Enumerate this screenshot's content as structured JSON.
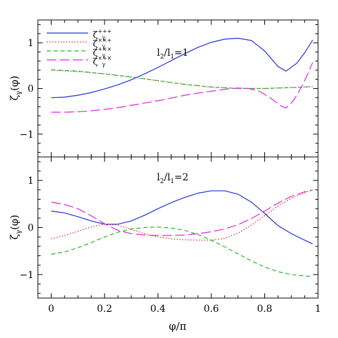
{
  "figure": {
    "xlabel": "φ/π",
    "ylabel": "ζ",
    "ylabel_sub": "γ",
    "ylabel_suffix": "(φ)"
  },
  "chart_data": [
    {
      "type": "line",
      "panel_label": "l2/l1=1",
      "panel_label_parts": {
        "a": "l",
        "a_sub": "2",
        "slash": "/",
        "b": "l",
        "b_sub": "1",
        "eq": "=1"
      },
      "xlim": [
        -0.05,
        1.0
      ],
      "ylim": [
        -1.5,
        1.5
      ],
      "xticks": [
        0,
        0.2,
        0.4,
        0.6,
        0.8,
        1
      ],
      "yticks": [
        -1,
        0,
        1
      ],
      "legend": "top-left",
      "series": [
        {
          "name": "ζ+++",
          "sup": "+++",
          "color": "#1f2fd6",
          "dash": "solid",
          "x": [
            0,
            0.05,
            0.1,
            0.15,
            0.2,
            0.25,
            0.3,
            0.35,
            0.4,
            0.45,
            0.5,
            0.55,
            0.6,
            0.65,
            0.7,
            0.75,
            0.8,
            0.85,
            0.88,
            0.92,
            0.95,
            0.98
          ],
          "y": [
            -0.2,
            -0.19,
            -0.15,
            -0.09,
            -0.01,
            0.08,
            0.19,
            0.32,
            0.46,
            0.61,
            0.76,
            0.9,
            1.01,
            1.08,
            1.1,
            1.05,
            0.82,
            0.48,
            0.38,
            0.55,
            0.78,
            1.06
          ]
        },
        {
          "name": "ζ××+",
          "sup": "××+",
          "color": "#d61f1f",
          "dash": "dotted",
          "x": [
            0,
            0.1,
            0.2,
            0.3,
            0.4,
            0.5,
            0.6,
            0.7,
            0.8,
            0.9,
            0.98
          ],
          "y": [
            0.4,
            0.37,
            0.32,
            0.25,
            0.17,
            0.09,
            0.03,
            0.0,
            0.0,
            0.02,
            0.04
          ]
        },
        {
          "name": "ζ+××",
          "sup": "+××",
          "color": "#1fb91f",
          "dash": "dashed",
          "x": [
            0,
            0.1,
            0.2,
            0.3,
            0.4,
            0.5,
            0.6,
            0.7,
            0.8,
            0.9,
            0.98
          ],
          "y": [
            0.41,
            0.38,
            0.32,
            0.25,
            0.17,
            0.09,
            0.03,
            0.0,
            0.0,
            0.02,
            0.04
          ]
        },
        {
          "name": "ζ×+×",
          "sup": "×+×",
          "color": "#e020e0",
          "dash": "longdash",
          "x": [
            0,
            0.05,
            0.1,
            0.15,
            0.2,
            0.25,
            0.3,
            0.35,
            0.4,
            0.45,
            0.5,
            0.55,
            0.6,
            0.65,
            0.7,
            0.74,
            0.78,
            0.82,
            0.86,
            0.88,
            0.91,
            0.94,
            0.96,
            0.98
          ],
          "y": [
            -0.52,
            -0.52,
            -0.51,
            -0.49,
            -0.46,
            -0.42,
            -0.37,
            -0.32,
            -0.27,
            -0.21,
            -0.15,
            -0.1,
            -0.06,
            -0.02,
            0.01,
            0.0,
            -0.06,
            -0.2,
            -0.38,
            -0.43,
            -0.25,
            0.05,
            0.3,
            0.57
          ]
        }
      ]
    },
    {
      "type": "line",
      "panel_label": "l2/l1=2",
      "panel_label_parts": {
        "a": "l",
        "a_sub": "2",
        "slash": "/",
        "b": "l",
        "b_sub": "1",
        "eq": "=2"
      },
      "xlim": [
        -0.05,
        1.0
      ],
      "ylim": [
        -1.5,
        1.5
      ],
      "xticks": [
        0,
        0.2,
        0.4,
        0.6,
        0.8,
        1
      ],
      "yticks": [
        -1,
        0,
        1
      ],
      "series": [
        {
          "name": "ζ+++",
          "color": "#1f2fd6",
          "dash": "solid",
          "x": [
            0,
            0.05,
            0.1,
            0.15,
            0.2,
            0.25,
            0.3,
            0.35,
            0.4,
            0.45,
            0.5,
            0.55,
            0.6,
            0.65,
            0.7,
            0.75,
            0.8,
            0.85,
            0.9,
            0.95,
            0.98
          ],
          "y": [
            0.35,
            0.31,
            0.23,
            0.14,
            0.07,
            0.07,
            0.14,
            0.26,
            0.4,
            0.53,
            0.64,
            0.73,
            0.78,
            0.78,
            0.71,
            0.54,
            0.3,
            0.04,
            -0.13,
            -0.27,
            -0.35
          ]
        },
        {
          "name": "ζ××+",
          "color": "#d61f1f",
          "dash": "dotted",
          "x": [
            0,
            0.05,
            0.1,
            0.15,
            0.2,
            0.25,
            0.3,
            0.35,
            0.4,
            0.45,
            0.5,
            0.55,
            0.6,
            0.65,
            0.7,
            0.75,
            0.8,
            0.85,
            0.9,
            0.95,
            0.98
          ],
          "y": [
            -0.24,
            -0.17,
            -0.08,
            0.01,
            0.07,
            0.05,
            -0.04,
            -0.13,
            -0.2,
            -0.24,
            -0.26,
            -0.27,
            -0.27,
            -0.23,
            -0.12,
            0.05,
            0.25,
            0.46,
            0.62,
            0.74,
            0.8
          ]
        },
        {
          "name": "ζ+××",
          "color": "#1fb91f",
          "dash": "dashed",
          "x": [
            0,
            0.05,
            0.1,
            0.15,
            0.2,
            0.25,
            0.3,
            0.35,
            0.4,
            0.45,
            0.5,
            0.55,
            0.6,
            0.65,
            0.7,
            0.75,
            0.8,
            0.85,
            0.9,
            0.95,
            0.98
          ],
          "y": [
            -0.57,
            -0.52,
            -0.43,
            -0.32,
            -0.2,
            -0.1,
            -0.03,
            0.0,
            0.01,
            -0.01,
            -0.06,
            -0.15,
            -0.27,
            -0.41,
            -0.56,
            -0.71,
            -0.84,
            -0.94,
            -1.0,
            -1.03,
            -1.04
          ]
        },
        {
          "name": "ζ×+×",
          "color": "#e020e0",
          "dash": "longdash",
          "x": [
            0,
            0.05,
            0.1,
            0.15,
            0.2,
            0.25,
            0.3,
            0.35,
            0.4,
            0.45,
            0.5,
            0.55,
            0.6,
            0.65,
            0.7,
            0.75,
            0.8,
            0.85,
            0.9,
            0.95,
            0.98
          ],
          "y": [
            0.54,
            0.49,
            0.4,
            0.25,
            0.08,
            -0.06,
            -0.13,
            -0.16,
            -0.17,
            -0.17,
            -0.16,
            -0.13,
            -0.09,
            -0.03,
            0.06,
            0.19,
            0.35,
            0.52,
            0.66,
            0.76,
            0.8
          ]
        }
      ]
    }
  ]
}
